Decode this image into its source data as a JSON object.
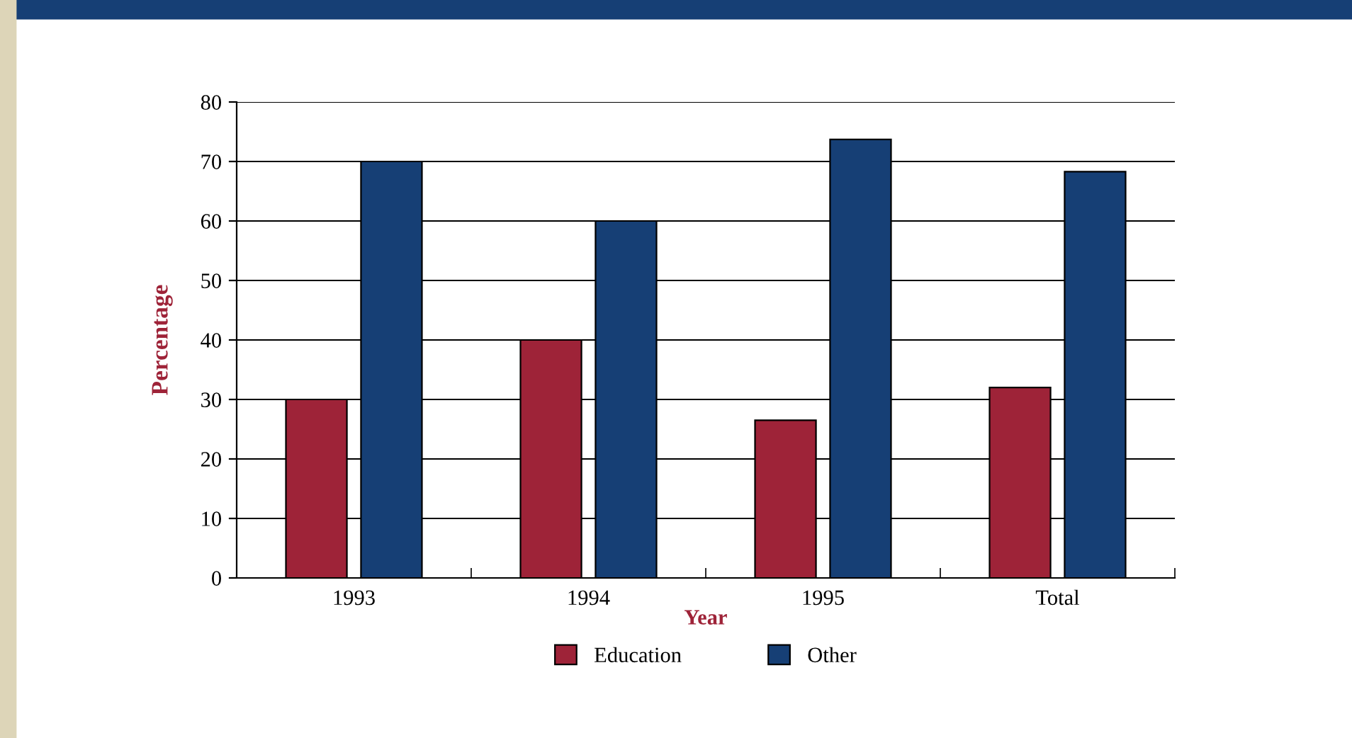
{
  "chart_data": {
    "type": "bar",
    "xlabel": "Year",
    "ylabel": "Percentage",
    "categories": [
      "1993",
      "1994",
      "1995",
      "Total"
    ],
    "series": [
      {
        "name": "Education",
        "color": "#9e2338",
        "values": [
          30,
          40,
          26.5,
          32
        ]
      },
      {
        "name": "Other",
        "color": "#163f75",
        "values": [
          70,
          60,
          73.7,
          68.3
        ]
      }
    ],
    "ylim": [
      0,
      80
    ],
    "yticks": [
      0,
      10,
      20,
      30,
      40,
      50,
      60,
      70,
      80
    ],
    "grid": "y",
    "legend": "bottom"
  }
}
